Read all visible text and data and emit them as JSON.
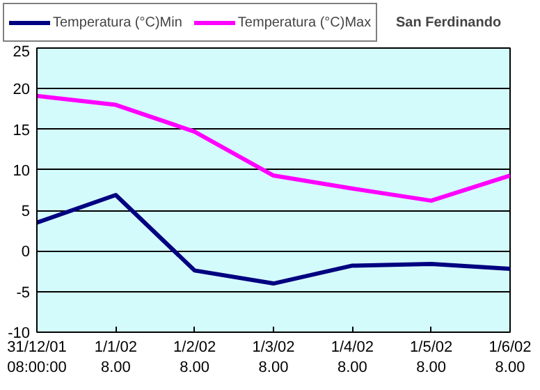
{
  "chart_data": {
    "type": "line",
    "title": "San Ferdinando",
    "categories": [
      "31/12/01\n08:00:00",
      "1/1/02\n8.00",
      "1/2/02\n8.00",
      "1/3/02\n8.00",
      "1/4/02\n8.00",
      "1/5/02\n8.00",
      "1/6/02\n8.00"
    ],
    "series": [
      {
        "name": "Temperatura (°C)Min",
        "color": "#000080",
        "values": [
          3.5,
          6.9,
          -2.4,
          -4.0,
          -1.8,
          -1.6,
          -2.2
        ]
      },
      {
        "name": "Temperatura (°C)Max",
        "color": "#ff00ff",
        "values": [
          19.1,
          18.0,
          14.7,
          9.3,
          7.7,
          6.2,
          9.3
        ]
      }
    ],
    "ylim": [
      -10,
      25
    ],
    "yticks": [
      -10,
      -5,
      0,
      5,
      10,
      15,
      20,
      25
    ],
    "grid": "y",
    "legend": "top left",
    "marker": "none",
    "line_style": "solid"
  }
}
